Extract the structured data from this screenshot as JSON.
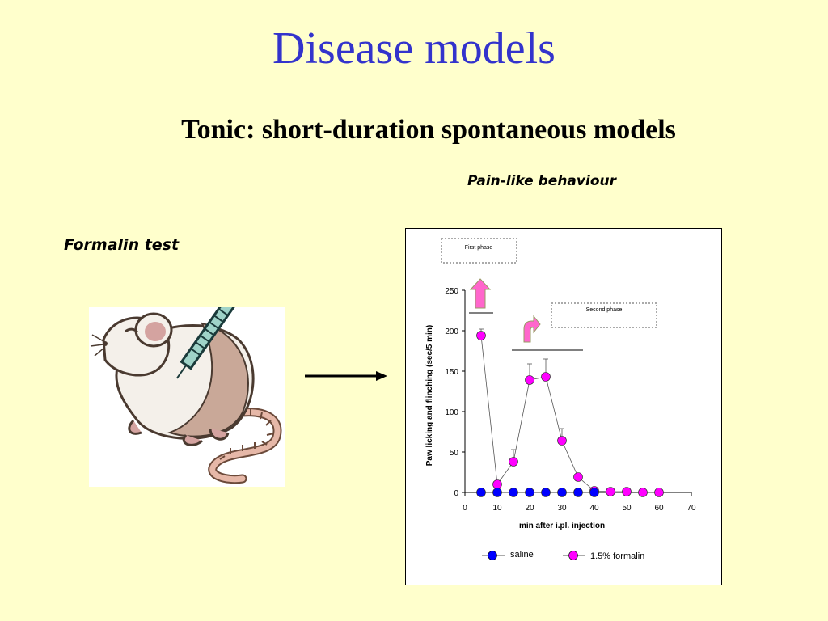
{
  "slide": {
    "title": "Disease models",
    "subtitle": "Tonic: short-duration spontaneous models",
    "pain_label": "Pain-like behaviour",
    "formalin_label": "Formalin test"
  },
  "colors": {
    "background": "#ffffcc",
    "title": "#3333cc",
    "saline": "#0000ff",
    "formalin": "#ff00ff",
    "phase_arrow": "#ff66cc"
  },
  "icons": {
    "mouse": "mouse-injection-illustration",
    "arrow": "right-arrow-icon"
  },
  "chart_data": {
    "type": "scatter",
    "xlabel": "min after i.pl. injection",
    "ylabel": "Paw licking and flinching (sec/5 min)",
    "xlim": [
      0,
      70
    ],
    "ylim": [
      0,
      250
    ],
    "x_ticks": [
      0,
      10,
      20,
      30,
      40,
      50,
      60,
      70
    ],
    "y_ticks": [
      0,
      50,
      100,
      150,
      200,
      250
    ],
    "legend_position": "bottom",
    "annotations": [
      "First phase",
      "Second phase"
    ],
    "series": [
      {
        "name": "saline",
        "color": "#0000ff",
        "x": [
          5,
          10,
          15,
          20,
          25,
          30,
          35,
          40
        ],
        "y": [
          0,
          0,
          0,
          0,
          0,
          0,
          0,
          0
        ]
      },
      {
        "name": "1.5% formalin",
        "color": "#ff00ff",
        "x": [
          5,
          10,
          15,
          20,
          25,
          30,
          35,
          40,
          45,
          50,
          55,
          60
        ],
        "y": [
          194,
          10,
          38,
          139,
          143,
          64,
          19,
          2,
          1,
          1,
          0,
          0
        ],
        "error": [
          8,
          0,
          15,
          20,
          22,
          15,
          0,
          0,
          0,
          0,
          0,
          0
        ]
      }
    ]
  }
}
